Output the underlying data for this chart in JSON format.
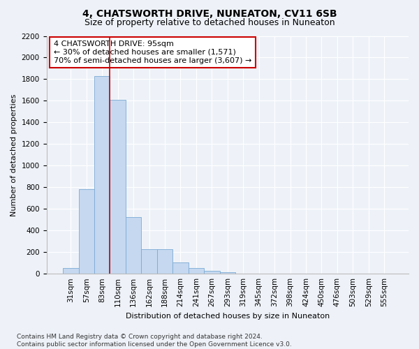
{
  "title": "4, CHATSWORTH DRIVE, NUNEATON, CV11 6SB",
  "subtitle": "Size of property relative to detached houses in Nuneaton",
  "xlabel": "Distribution of detached houses by size in Nuneaton",
  "ylabel": "Number of detached properties",
  "categories": [
    "31sqm",
    "57sqm",
    "83sqm",
    "110sqm",
    "136sqm",
    "162sqm",
    "188sqm",
    "214sqm",
    "241sqm",
    "267sqm",
    "293sqm",
    "319sqm",
    "345sqm",
    "372sqm",
    "398sqm",
    "424sqm",
    "450sqm",
    "476sqm",
    "503sqm",
    "529sqm",
    "555sqm"
  ],
  "values": [
    55,
    780,
    1830,
    1610,
    525,
    230,
    230,
    105,
    55,
    30,
    15,
    0,
    0,
    0,
    0,
    0,
    0,
    0,
    0,
    0,
    0
  ],
  "bar_color": "#c5d8f0",
  "bar_edge_color": "#7baad4",
  "vline_color": "#cc0000",
  "vline_x": 2.5,
  "annotation_text": "4 CHATSWORTH DRIVE: 95sqm\n← 30% of detached houses are smaller (1,571)\n70% of semi-detached houses are larger (3,607) →",
  "annotation_box_color": "#ffffff",
  "annotation_box_edge_color": "#cc0000",
  "ylim": [
    0,
    2200
  ],
  "yticks": [
    0,
    200,
    400,
    600,
    800,
    1000,
    1200,
    1400,
    1600,
    1800,
    2000,
    2200
  ],
  "footer_text": "Contains HM Land Registry data © Crown copyright and database right 2024.\nContains public sector information licensed under the Open Government Licence v3.0.",
  "background_color": "#eef2f8",
  "title_fontsize": 10,
  "subtitle_fontsize": 9,
  "axis_label_fontsize": 8,
  "tick_fontsize": 7.5,
  "annotation_fontsize": 8,
  "footer_fontsize": 6.5
}
